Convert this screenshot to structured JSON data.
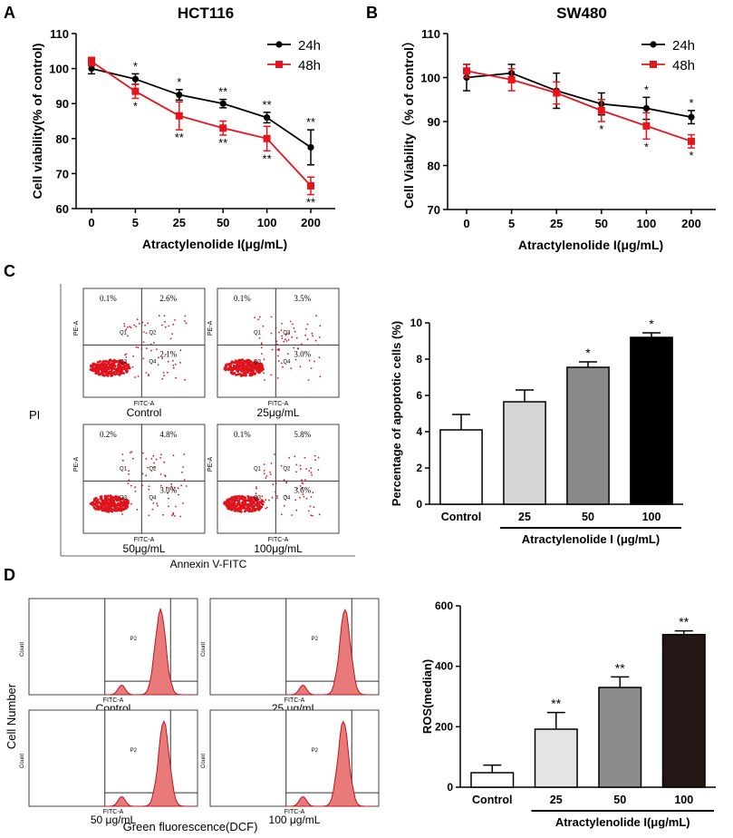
{
  "panels": {
    "A": "A",
    "B": "B",
    "C": "C",
    "D": "D"
  },
  "chart_data": [
    {
      "id": "A",
      "type": "line",
      "title": "HCT116",
      "xlabel": "Atractylenolide I(μg/mL)",
      "ylabel": "Cell viability(% of control)",
      "categories": [
        "0",
        "5",
        "25",
        "50",
        "100",
        "200"
      ],
      "ylim": [
        60,
        110
      ],
      "yticks": [
        "60",
        "70",
        "80",
        "90",
        "100",
        "110"
      ],
      "series": [
        {
          "name": "24h",
          "color": "#000000",
          "values": [
            100,
            97,
            92.5,
            90,
            86,
            77.5
          ],
          "errors": [
            1.5,
            1.5,
            1.5,
            1.2,
            1.5,
            5
          ],
          "sig": [
            "",
            "*",
            "*",
            "**",
            "**",
            "**"
          ]
        },
        {
          "name": "48h",
          "color": "#e8141b",
          "values": [
            102,
            93.5,
            86.5,
            83,
            80,
            66.5
          ],
          "errors": [
            1.2,
            2,
            4,
            2,
            3.5,
            2.5
          ],
          "sig": [
            "",
            "*",
            "**",
            "**",
            "**",
            "**"
          ]
        }
      ]
    },
    {
      "id": "B",
      "type": "line",
      "title": "SW480",
      "xlabel": "Atractylenolide I(μg/mL)",
      "ylabel": "Cell Viability（% of control）",
      "categories": [
        "0",
        "5",
        "25",
        "50",
        "100",
        "200"
      ],
      "ylim": [
        70,
        110
      ],
      "yticks": [
        "70",
        "80",
        "90",
        "100",
        "110"
      ],
      "series": [
        {
          "name": "24h",
          "color": "#000000",
          "values": [
            100,
            101,
            97,
            94,
            93,
            91
          ],
          "errors": [
            3,
            2,
            4,
            2.5,
            2.5,
            1.5
          ],
          "sig": [
            "",
            "",
            "",
            "",
            "*",
            "*"
          ]
        },
        {
          "name": "48h",
          "color": "#e8141b",
          "values": [
            101.5,
            99.5,
            96.5,
            92.5,
            89,
            85.5
          ],
          "errors": [
            1.5,
            2.5,
            2.5,
            2.5,
            3,
            1.5
          ],
          "sig": [
            "",
            "",
            "",
            "*",
            "*",
            "*"
          ]
        }
      ]
    },
    {
      "id": "C",
      "type": "bar",
      "ylabel": "Percentage of apoptotic cells (%)",
      "xgroup_label": "Atractylenolide I (μg/mL)",
      "categories": [
        "Control",
        "25",
        "50",
        "100"
      ],
      "values": [
        4.1,
        5.65,
        7.55,
        9.2
      ],
      "errors": [
        0.85,
        0.65,
        0.3,
        0.25
      ],
      "colors": [
        "#ffffff",
        "#d6d6d6",
        "#8a8a8a",
        "#000000"
      ],
      "sig": [
        "",
        "",
        "*",
        "*"
      ],
      "ylim": [
        0,
        10
      ],
      "yticks": [
        "0",
        "2",
        "4",
        "6",
        "8",
        "10"
      ]
    },
    {
      "id": "D",
      "type": "bar",
      "ylabel": "ROS(median)",
      "xgroup_label": "Atractylenolide I(μg/mL)",
      "categories": [
        "Control",
        "25",
        "50",
        "100"
      ],
      "values": [
        48,
        192,
        330,
        505
      ],
      "errors": [
        25,
        55,
        35,
        12
      ],
      "colors": [
        "#ffffff",
        "#e4e4e4",
        "#8c8c8c",
        "#231815"
      ],
      "sig": [
        "",
        "**",
        "**",
        "**"
      ],
      "ylim": [
        0,
        600
      ],
      "yticks": [
        "0",
        "200",
        "400",
        "600"
      ]
    }
  ],
  "flow_c": {
    "yaxis_label": "PI",
    "xaxis_label": "Annexin V-FITC",
    "plots": [
      {
        "caption": "Control",
        "ul": "0.1%",
        "ur": "2.6%",
        "lr": "2.1%",
        "ylab": "PE-A",
        "xlab": "FITC-A",
        "q1": "Q1",
        "q2": "Q2",
        "q4": "Q4",
        "q3": "Q3"
      },
      {
        "caption": "25μg/mL",
        "ul": "0.1%",
        "ur": "3.5%",
        "lr": "3.0%",
        "ylab": "PE-A",
        "xlab": "FITC-A",
        "q1": "Q1",
        "q2": "Q2",
        "q4": "Q4",
        "q3": "Q3"
      },
      {
        "caption": "50μg/mL",
        "ul": "0.2%",
        "ur": "4.8%",
        "lr": "3.0%",
        "ylab": "PE-A",
        "xlab": "FITC-A",
        "q1": "Q1",
        "q2": "Q2",
        "q4": "Q4",
        "q3": "Q3"
      },
      {
        "caption": "100μg/mL",
        "ul": "0.1%",
        "ur": "5.8%",
        "lr": "3.6%",
        "ylab": "PE-A",
        "xlab": "FITC-A",
        "q1": "Q1",
        "q2": "Q2",
        "q4": "Q4",
        "q3": "Q3"
      }
    ]
  },
  "flow_d": {
    "yaxis_label": "Cell Number",
    "xaxis_label": "Green fluorescence(DCF)",
    "plots": [
      {
        "caption": "Control",
        "ylab": "Count",
        "xlab": "FITC-A",
        "gate": "P2"
      },
      {
        "caption": "25 μg/mL",
        "ylab": "Count",
        "xlab": "FITC-A",
        "gate": "P2"
      },
      {
        "caption": "50 μg/mL",
        "ylab": "Count",
        "xlab": "FITC-A",
        "gate": "P2"
      },
      {
        "caption": "100 μg/mL",
        "ylab": "Count",
        "xlab": "FITC-A",
        "gate": "P2"
      }
    ]
  }
}
